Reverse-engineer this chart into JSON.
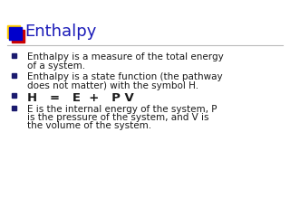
{
  "title": "Enthalpy",
  "title_color": "#1a1ab8",
  "title_fontsize": 13,
  "bg_color": "#ffffff",
  "bullet_color": "#1a1a6e",
  "text_color": "#1a1a1a",
  "icon_colors": [
    "#ffcc00",
    "#cc0000",
    "#0000cc"
  ],
  "separator_color": "#bbbbbb",
  "bullet_lines": [
    {
      "text": "Enthalpy is a measure of the total energy\nof a system.",
      "bold": false,
      "size": 7.5
    },
    {
      "text": "Enthalpy is a state function (the pathway\ndoes not matter) with the symbol H.",
      "bold": false,
      "size": 7.5
    },
    {
      "text": "H   =   E  +   P V",
      "bold": true,
      "size": 9.5
    },
    {
      "text": "E is the internal energy of the system, P\nis the pressure of the system, and V is\nthe volume of the system.",
      "bold": false,
      "size": 7.5
    }
  ]
}
